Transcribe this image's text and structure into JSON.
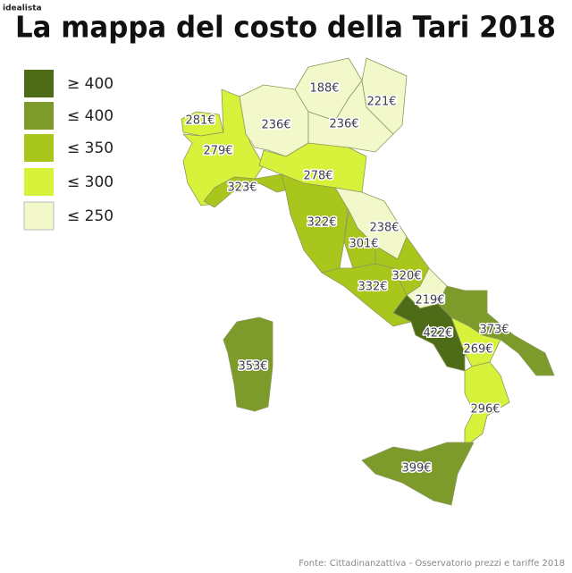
{
  "brand": "idealista",
  "title": "La mappa del costo della Tari 2018",
  "legend": [
    {
      "label": "≥ 400",
      "color": "#4e6b17"
    },
    {
      "label": "≤ 400",
      "color": "#7c9b2a"
    },
    {
      "label": "≤ 350",
      "color": "#a9c61c"
    },
    {
      "label": "≤ 300",
      "color": "#d8f23c"
    },
    {
      "label": "≤ 250",
      "color": "#f3f8cb"
    }
  ],
  "regions": [
    {
      "label": "281€",
      "color": "#d8f23c"
    },
    {
      "label": "279€",
      "color": "#d8f23c"
    },
    {
      "label": "236€",
      "color": "#f3f8cb"
    },
    {
      "label": "188€",
      "color": "#f3f8cb"
    },
    {
      "label": "236€",
      "color": "#f3f8cb"
    },
    {
      "label": "221€",
      "color": "#f3f8cb"
    },
    {
      "label": "278€",
      "color": "#d8f23c"
    },
    {
      "label": "323€",
      "color": "#a9c61c"
    },
    {
      "label": "322€",
      "color": "#a9c61c"
    },
    {
      "label": "238€",
      "color": "#f3f8cb"
    },
    {
      "label": "301€",
      "color": "#a9c61c"
    },
    {
      "label": "332€",
      "color": "#a9c61c"
    },
    {
      "label": "320€",
      "color": "#a9c61c"
    },
    {
      "label": "219€",
      "color": "#f3f8cb"
    },
    {
      "label": "422€",
      "color": "#4e6b17"
    },
    {
      "label": "373€",
      "color": "#7c9b2a"
    },
    {
      "label": "269€",
      "color": "#d8f23c"
    },
    {
      "label": "296€",
      "color": "#d8f23c"
    },
    {
      "label": "399€",
      "color": "#7c9b2a"
    },
    {
      "label": "353€",
      "color": "#7c9b2a"
    }
  ],
  "source": "Fonte: Cittadinanzattiva - Osservatorio prezzi e tariffe 2018"
}
